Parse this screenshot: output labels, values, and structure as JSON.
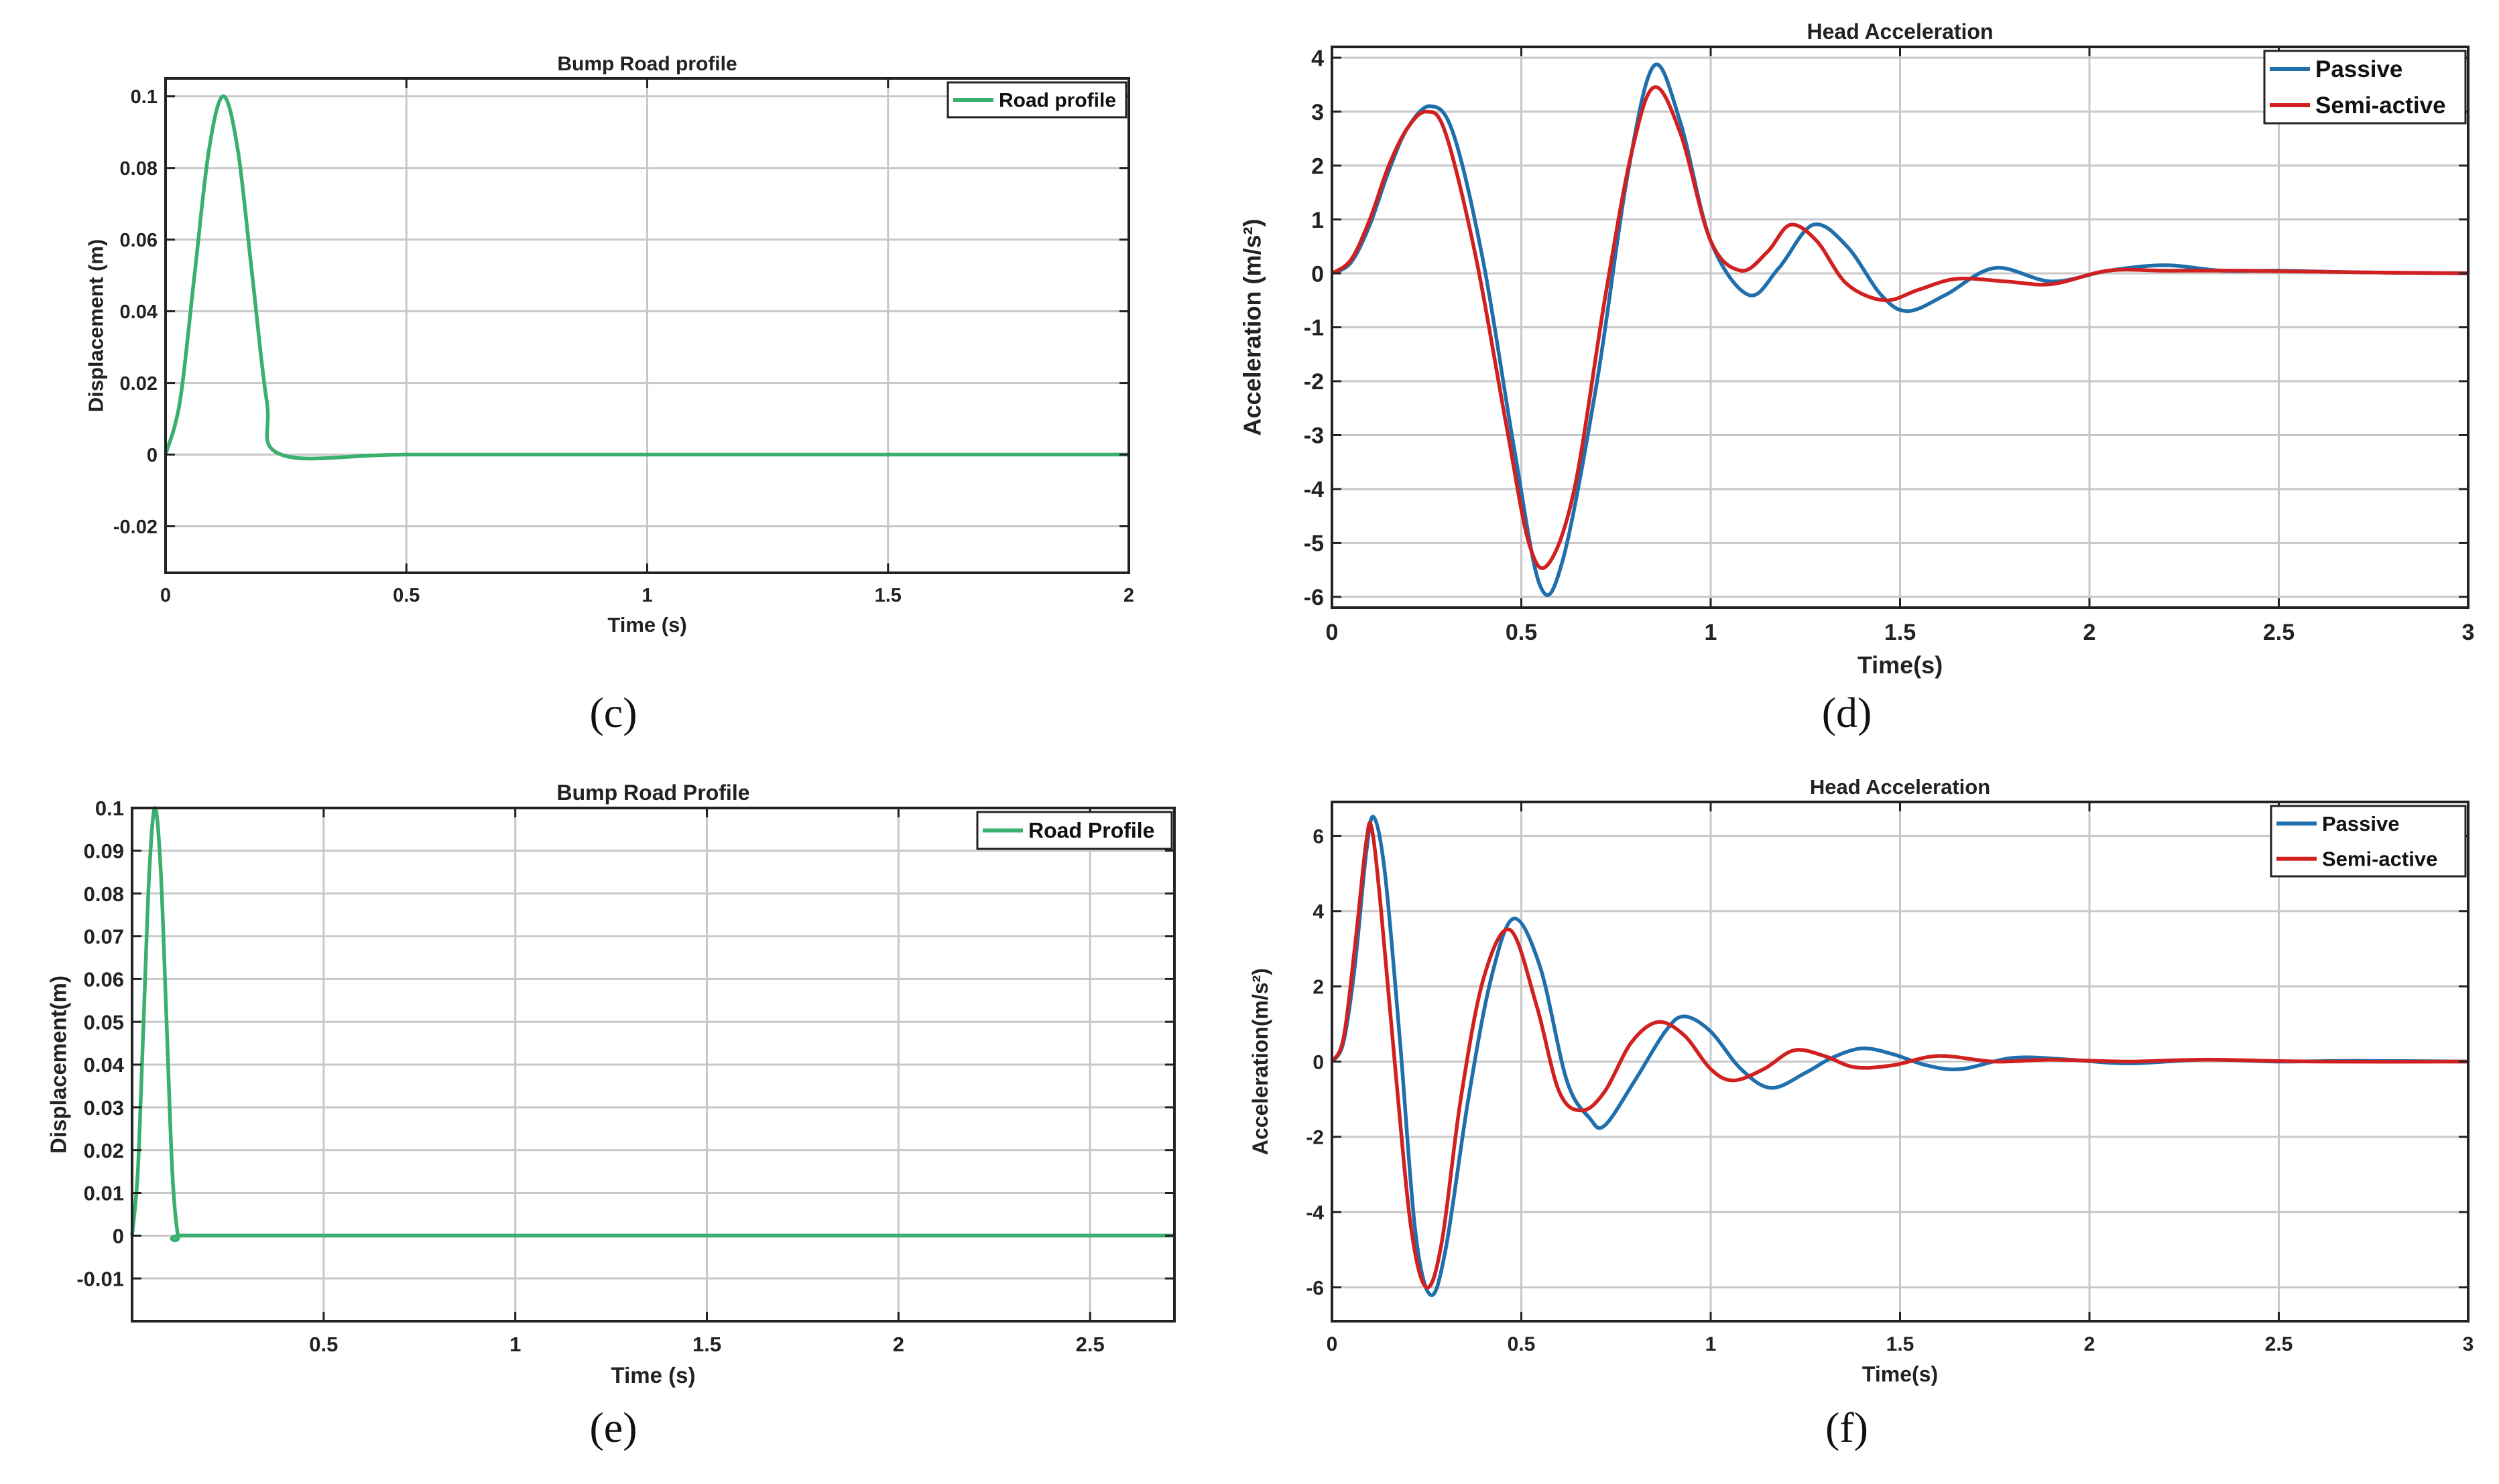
{
  "chart_data": [
    {
      "id": "c",
      "type": "line",
      "caption": "(c)",
      "title": "Bump Road profile",
      "xlabel": "Time (s)",
      "ylabel": "Displacement (m)",
      "xlim": [
        0,
        2
      ],
      "ylim": [
        -0.033,
        0.105
      ],
      "xticks": [
        0,
        0.5,
        1,
        1.5,
        2
      ],
      "xtick_labels": [
        "0",
        "0.5",
        "1",
        "1.5",
        "2"
      ],
      "yticks": [
        -0.02,
        0,
        0.02,
        0.04,
        0.06,
        0.08,
        0.1
      ],
      "ytick_labels": [
        "-0.02",
        "0",
        "0.02",
        "0.04",
        "0.06",
        "0.08",
        "0.1"
      ],
      "legend_position": "top-right",
      "series": [
        {
          "name": "Road profile",
          "color": "#3aaf6e",
          "x": [
            0,
            0.03,
            0.06,
            0.09,
            0.12,
            0.15,
            0.18,
            0.21,
            0.24,
            0.5,
            1,
            1.5,
            2
          ],
          "y": [
            0,
            0.015,
            0.05,
            0.085,
            0.1,
            0.085,
            0.05,
            0.015,
            0,
            0,
            0,
            0,
            0
          ]
        }
      ]
    },
    {
      "id": "d",
      "type": "line",
      "caption": "(d)",
      "title": "Head Acceleration",
      "xlabel": "Time(s)",
      "ylabel": "Acceleration (m/s²)",
      "xlim": [
        0,
        3
      ],
      "ylim": [
        -6.2,
        4.2
      ],
      "xticks": [
        0,
        0.5,
        1,
        1.5,
        2,
        2.5,
        3
      ],
      "xtick_labels": [
        "0",
        "0.5",
        "1",
        "1.5",
        "2",
        "2.5",
        "3"
      ],
      "yticks": [
        -6,
        -5,
        -4,
        -3,
        -2,
        -1,
        0,
        1,
        2,
        3,
        4
      ],
      "ytick_labels": [
        "-6",
        "-5",
        "-4",
        "-3",
        "-2",
        "-1",
        "0",
        "1",
        "2",
        "3",
        "4"
      ],
      "legend_position": "top-right",
      "series": [
        {
          "name": "Passive",
          "color": "#1f6fad",
          "x": [
            0,
            0.05,
            0.1,
            0.15,
            0.2,
            0.26,
            0.32,
            0.4,
            0.48,
            0.55,
            0.61,
            0.7,
            0.78,
            0.85,
            0.92,
            1.0,
            1.1,
            1.18,
            1.27,
            1.36,
            1.45,
            1.52,
            1.62,
            1.75,
            1.9,
            2.05,
            2.2,
            2.35,
            2.5,
            2.7,
            3.0
          ],
          "y": [
            0,
            0.2,
            0.9,
            1.9,
            2.7,
            3.1,
            2.6,
            0.2,
            -3.2,
            -5.8,
            -5.3,
            -2.0,
            1.8,
            3.85,
            2.8,
            0.6,
            -0.4,
            0.1,
            0.9,
            0.5,
            -0.4,
            -0.7,
            -0.4,
            0.1,
            -0.15,
            0.05,
            0.15,
            0.05,
            0.05,
            0.02,
            0
          ]
        },
        {
          "name": "Semi-active",
          "color": "#d12020",
          "x": [
            0,
            0.05,
            0.1,
            0.15,
            0.2,
            0.25,
            0.3,
            0.38,
            0.46,
            0.52,
            0.57,
            0.64,
            0.72,
            0.79,
            0.85,
            0.92,
            1.0,
            1.08,
            1.15,
            1.21,
            1.28,
            1.36,
            1.46,
            1.55,
            1.65,
            1.78,
            1.9,
            2.05,
            2.2,
            2.4,
            2.7,
            3.0
          ],
          "y": [
            0,
            0.25,
            1.0,
            2.0,
            2.7,
            3.0,
            2.6,
            0.3,
            -2.8,
            -5.0,
            -5.4,
            -4.0,
            -0.5,
            2.2,
            3.45,
            2.6,
            0.6,
            0.05,
            0.4,
            0.9,
            0.6,
            -0.2,
            -0.5,
            -0.3,
            -0.1,
            -0.15,
            -0.2,
            0.05,
            0.05,
            0.05,
            0.02,
            0
          ]
        }
      ]
    },
    {
      "id": "e",
      "type": "line",
      "caption": "(e)",
      "title": "Bump Road Profile",
      "xlabel": "Time (s)",
      "ylabel": "Displacement(m)",
      "xlim": [
        0,
        2.72
      ],
      "ylim": [
        -0.02,
        0.1
      ],
      "xticks": [
        0.5,
        1,
        1.5,
        2,
        2.5
      ],
      "xtick_labels": [
        "0.5",
        "1",
        "1.5",
        "2",
        "2.5"
      ],
      "yticks": [
        -0.01,
        0,
        0.01,
        0.02,
        0.03,
        0.04,
        0.05,
        0.06,
        0.07,
        0.08,
        0.09,
        0.1
      ],
      "ytick_labels": [
        "-0.01",
        "0",
        "0.01",
        "0.02",
        "0.03",
        "0.04",
        "0.05",
        "0.06",
        "0.07",
        "0.08",
        "0.09",
        "0.1"
      ],
      "legend_position": "top-right",
      "series": [
        {
          "name": "Road Profile",
          "color": "#3aaf6e",
          "x": [
            0,
            0.015,
            0.03,
            0.045,
            0.06,
            0.075,
            0.09,
            0.105,
            0.12,
            0.135,
            0.5,
            1,
            1.5,
            2,
            2.5,
            2.72
          ],
          "y": [
            0,
            0.015,
            0.05,
            0.085,
            0.1,
            0.085,
            0.05,
            0.015,
            0,
            0,
            0,
            0,
            0,
            0,
            0,
            0
          ]
        }
      ]
    },
    {
      "id": "f",
      "type": "line",
      "caption": "(f)",
      "title": "Head Acceleration",
      "xlabel": "Time(s)",
      "ylabel": "Acceleration(m/s²)",
      "xlim": [
        0,
        3
      ],
      "ylim": [
        -6.9,
        6.9
      ],
      "xticks": [
        0,
        0.5,
        1,
        1.5,
        2,
        2.5,
        3
      ],
      "xtick_labels": [
        "0",
        "0.5",
        "1",
        "1.5",
        "2",
        "2.5",
        "3"
      ],
      "yticks": [
        -6,
        -4,
        -2,
        0,
        2,
        4,
        6
      ],
      "ytick_labels": [
        "-6",
        "-4",
        "-2",
        "0",
        "2",
        "4",
        "6"
      ],
      "legend_position": "top-right",
      "series": [
        {
          "name": "Passive",
          "color": "#1f6fad",
          "x": [
            0,
            0.03,
            0.06,
            0.09,
            0.11,
            0.14,
            0.18,
            0.22,
            0.26,
            0.3,
            0.36,
            0.42,
            0.48,
            0.55,
            0.62,
            0.68,
            0.72,
            0.8,
            0.88,
            0.93,
            1.0,
            1.08,
            1.16,
            1.25,
            1.32,
            1.4,
            1.48,
            1.57,
            1.66,
            1.8,
            1.95,
            2.1,
            2.3,
            2.5,
            2.7,
            3.0
          ],
          "y": [
            0,
            0.5,
            2.5,
            5.5,
            6.5,
            5.0,
            0.5,
            -4.5,
            -6.2,
            -5.0,
            -1.0,
            2.2,
            3.8,
            2.5,
            -0.5,
            -1.5,
            -1.7,
            -0.5,
            0.8,
            1.2,
            0.8,
            -0.2,
            -0.7,
            -0.3,
            0.1,
            0.35,
            0.2,
            -0.1,
            -0.2,
            0.1,
            0.05,
            -0.05,
            0.05,
            0,
            0.02,
            0
          ]
        },
        {
          "name": "Semi-active",
          "color": "#d12020",
          "x": [
            0,
            0.03,
            0.06,
            0.09,
            0.105,
            0.13,
            0.17,
            0.21,
            0.25,
            0.29,
            0.34,
            0.4,
            0.47,
            0.54,
            0.6,
            0.66,
            0.72,
            0.79,
            0.86,
            0.93,
            1.0,
            1.06,
            1.14,
            1.22,
            1.3,
            1.38,
            1.48,
            1.6,
            1.75,
            1.9,
            2.1,
            2.3,
            2.6,
            3.0
          ],
          "y": [
            0,
            0.6,
            3.0,
            5.8,
            6.2,
            4.0,
            -0.5,
            -4.5,
            -6.0,
            -4.8,
            -1.0,
            2.2,
            3.5,
            1.5,
            -0.8,
            -1.3,
            -0.8,
            0.5,
            1.05,
            0.7,
            -0.2,
            -0.5,
            -0.2,
            0.3,
            0.15,
            -0.15,
            -0.1,
            0.15,
            0,
            0.05,
            0,
            0.05,
            0,
            0
          ]
        }
      ]
    }
  ]
}
